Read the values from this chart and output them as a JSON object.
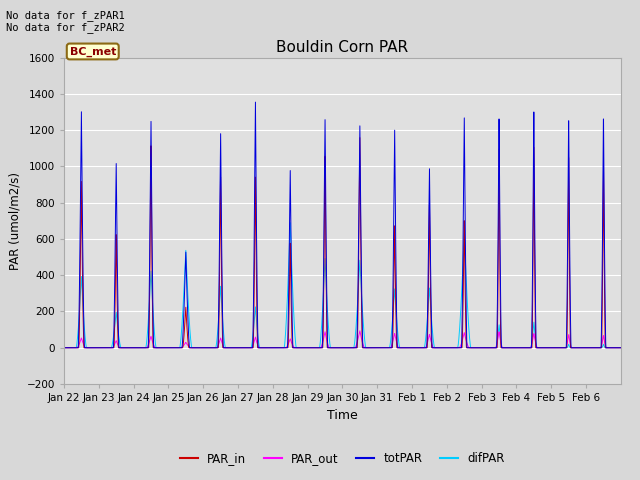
{
  "title": "Bouldin Corn PAR",
  "xlabel": "Time",
  "ylabel": "PAR (umol/m2/s)",
  "ylim": [
    -200,
    1600
  ],
  "yticks": [
    -200,
    0,
    200,
    400,
    600,
    800,
    1000,
    1200,
    1400,
    1600
  ],
  "bg_color": "#d8d8d8",
  "plot_bg_color": "#e0e0e0",
  "annotation_text": "No data for f_zPAR1\nNo data for f_zPAR2",
  "legend_label": "BC_met",
  "legend_bg": "#ffffd0",
  "legend_border": "#8b6914",
  "colors": {
    "PAR_in": "#cc0000",
    "PAR_out": "#ff00ff",
    "totPAR": "#0000dd",
    "difPAR": "#00ccff"
  },
  "n_days": 16,
  "tick_labels": [
    "Jan 22",
    "Jan 23",
    "Jan 24",
    "Jan 25",
    "Jan 26",
    "Jan 27",
    "Jan 28",
    "Jan 29",
    "Jan 30",
    "Jan 31",
    "Feb 1",
    "Feb 2",
    "Feb 3",
    "Feb 4",
    "Feb 5",
    "Feb 6"
  ],
  "peak_totPAR": [
    1340,
    1050,
    1290,
    540,
    1220,
    1400,
    1010,
    1300,
    1260,
    1240,
    1020,
    1310,
    1310,
    1350,
    1300,
    1310
  ],
  "peak_PAR_in": [
    950,
    650,
    1160,
    230,
    980,
    980,
    600,
    1100,
    1200,
    700,
    820,
    730,
    1150,
    1160,
    1100,
    1050
  ],
  "peak_PAR_out": [
    55,
    40,
    65,
    30,
    55,
    60,
    50,
    90,
    95,
    80,
    75,
    85,
    90,
    80,
    75,
    70
  ],
  "peak_difPAR": [
    400,
    200,
    430,
    545,
    345,
    230,
    700,
    500,
    490,
    330,
    335,
    640,
    130,
    145,
    20,
    20
  ],
  "width_totPAR": [
    0.18,
    0.16,
    0.16,
    0.22,
    0.16,
    0.16,
    0.16,
    0.16,
    0.18,
    0.16,
    0.16,
    0.16,
    0.14,
    0.14,
    0.14,
    0.14
  ],
  "width_PAR_in": [
    0.15,
    0.13,
    0.13,
    0.18,
    0.13,
    0.13,
    0.13,
    0.13,
    0.15,
    0.13,
    0.13,
    0.13,
    0.11,
    0.11,
    0.11,
    0.11
  ],
  "width_difPAR": [
    0.3,
    0.28,
    0.3,
    0.35,
    0.28,
    0.25,
    0.35,
    0.32,
    0.35,
    0.3,
    0.3,
    0.38,
    0.18,
    0.18,
    0.1,
    0.1
  ],
  "width_PAR_out": [
    0.25,
    0.22,
    0.25,
    0.28,
    0.22,
    0.22,
    0.25,
    0.25,
    0.28,
    0.24,
    0.24,
    0.28,
    0.2,
    0.2,
    0.16,
    0.16
  ]
}
